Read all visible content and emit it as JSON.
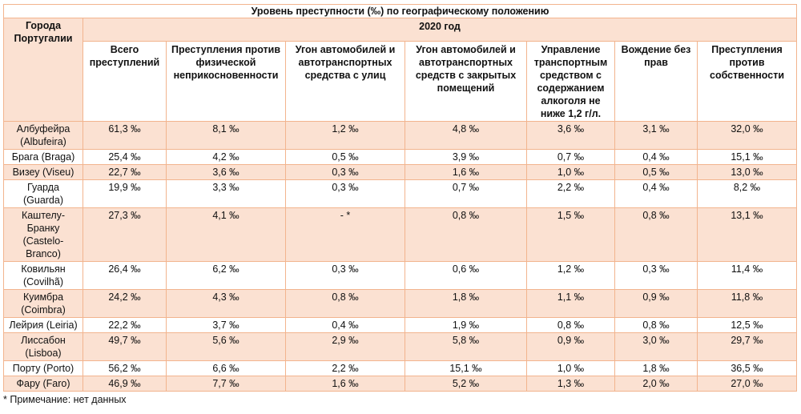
{
  "title": "Уровень преступности (‰) по географическому положению",
  "city_header": "Города Португалии",
  "year_header": "2020 год",
  "columns": [
    "Всего преступлений",
    "Преступления против физической неприкосновенности",
    "Угон автомобилей и автотранспортных средства с улиц",
    "Угон автомобилей и автотранспортных средств с закрытых помещений",
    "Управление транспортным средством с содержанием алкоголя не ниже 1,2 г/л.",
    "Вождение без прав",
    "Преступления против собственности"
  ],
  "rows": [
    {
      "city": "Албуфейра (Albufeira)",
      "values": [
        "61,3 ‰",
        "8,1 ‰",
        "1,2 ‰",
        "4,8 ‰",
        "3,6 ‰",
        "3,1 ‰",
        "32,0 ‰"
      ]
    },
    {
      "city": "Брага (Braga)",
      "values": [
        "25,4 ‰",
        "4,2 ‰",
        "0,5 ‰",
        "3,9 ‰",
        "0,7 ‰",
        "0,4 ‰",
        "15,1 ‰"
      ]
    },
    {
      "city": "Визеу (Viseu)",
      "values": [
        "22,7 ‰",
        "3,6 ‰",
        "0,3 ‰",
        "1,6 ‰",
        "1,0 ‰",
        "0,5 ‰",
        "13,0 ‰"
      ]
    },
    {
      "city": "Гуарда (Guarda)",
      "values": [
        "19,9 ‰",
        "3,3 ‰",
        "0,3 ‰",
        "0,7 ‰",
        "2,2 ‰",
        "0,4 ‰",
        "8,2 ‰"
      ]
    },
    {
      "city": "Каштелу-Бранку (Castelo-Branco)",
      "values": [
        "27,3 ‰",
        "4,1 ‰",
        "- *",
        "0,8 ‰",
        "1,5 ‰",
        "0,8 ‰",
        "13,1 ‰"
      ]
    },
    {
      "city": "Ковильян (Covilhã)",
      "values": [
        "26,4 ‰",
        "6,2 ‰",
        "0,3 ‰",
        "0,6 ‰",
        "1,2 ‰",
        "0,3 ‰",
        "11,4 ‰"
      ]
    },
    {
      "city": "Куимбра (Coimbra)",
      "values": [
        "24,2 ‰",
        "4,3 ‰",
        "0,8 ‰",
        "1,8 ‰",
        "1,1 ‰",
        "0,9 ‰",
        "11,8 ‰"
      ]
    },
    {
      "city": "Лейрия (Leiria)",
      "values": [
        "22,2 ‰",
        "3,7 ‰",
        "0,4 ‰",
        "1,9 ‰",
        "0,8 ‰",
        "0,8 ‰",
        "12,5 ‰"
      ]
    },
    {
      "city": "Лиссабон (Lisboa)",
      "values": [
        "49,7 ‰",
        "5,6 ‰",
        "2,9 ‰",
        "5,8 ‰",
        "0,9 ‰",
        "3,0 ‰",
        "29,7 ‰"
      ]
    },
    {
      "city": "Порту (Porto)",
      "values": [
        "56,2 ‰",
        "6,6 ‰",
        "2,2 ‰",
        "15,1 ‰",
        "1,0 ‰",
        "1,8 ‰",
        "36,5 ‰"
      ]
    },
    {
      "city": "Фару (Faro)",
      "values": [
        "46,9 ‰",
        "7,7 ‰",
        "1,6 ‰",
        "5,2 ‰",
        "1,3 ‰",
        "2,0 ‰",
        "27,0 ‰"
      ]
    }
  ],
  "footnote": "* Примечание: нет данных",
  "colors": {
    "peach": "#fbe1d2",
    "border": "#f2b48e"
  }
}
